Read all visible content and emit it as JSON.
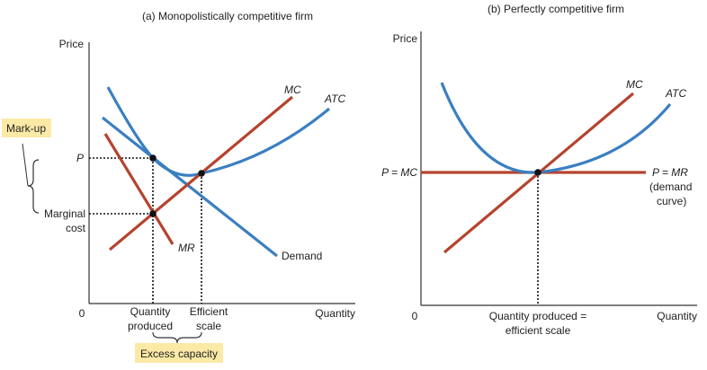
{
  "panel_a": {
    "title": "(a) Monopolistically competitive firm",
    "y_axis": "Price",
    "x_axis": "Quantity",
    "origin": "0",
    "label_p": "P",
    "label_marginal_1": "Marginal",
    "label_marginal_2": "cost",
    "curve_mc": "MC",
    "curve_atc": "ATC",
    "curve_mr": "MR",
    "curve_demand": "Demand",
    "tick_qty_1": "Quantity",
    "tick_qty_2": "produced",
    "tick_eff_1": "Efficient",
    "tick_eff_2": "scale",
    "callout_markup": "Mark-up",
    "callout_excess": "Excess capacity"
  },
  "panel_b": {
    "title": "(b) Perfectly competitive firm",
    "y_axis": "Price",
    "x_axis": "Quantity",
    "origin": "0",
    "label_p_mc": "P = MC",
    "curve_mc": "MC",
    "curve_atc": "ATC",
    "curve_pmr": "P = MR",
    "curve_pmr_2": "(demand",
    "curve_pmr_3": "curve)",
    "tick_qty_1": "Quantity produced =",
    "tick_qty_2": "efficient scale"
  },
  "colors": {
    "blue": "#3a7fc1",
    "red": "#b5432e",
    "callout_bg": "#fbe9a6"
  }
}
